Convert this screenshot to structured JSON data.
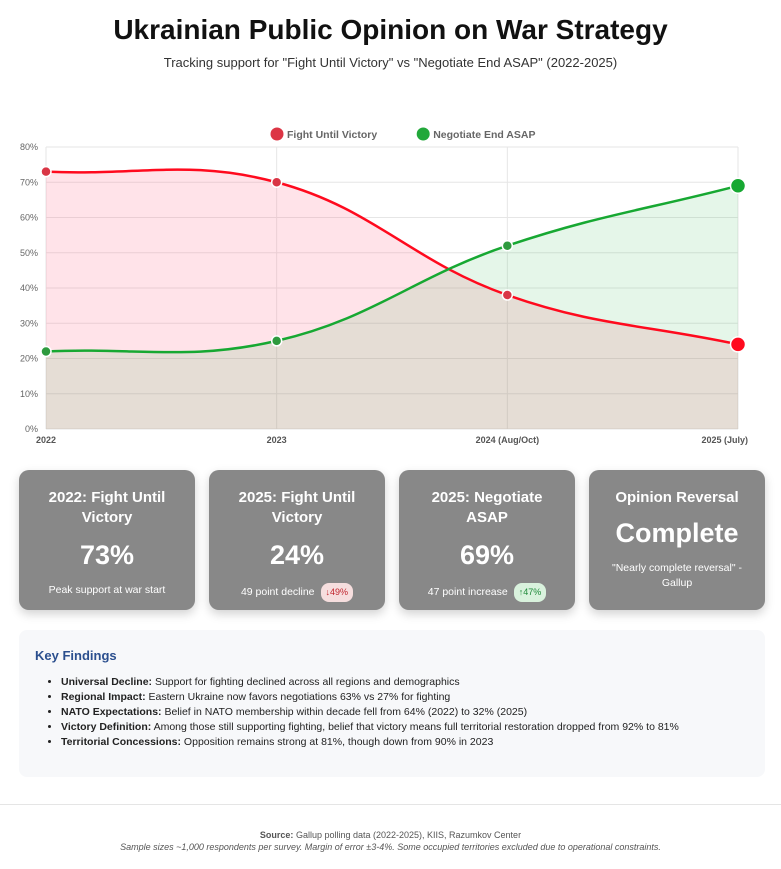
{
  "header": {
    "title": "Ukrainian Public Opinion on War Strategy",
    "subtitle": "Tracking support for \"Fight Until Victory\" vs \"Negotiate End ASAP\" (2022-2025)"
  },
  "chart_data": {
    "type": "line",
    "categories": [
      "2022",
      "2023",
      "2024 (Aug/Oct)",
      "2025 (July)"
    ],
    "series": [
      {
        "name": "Fight Until Victory",
        "values": [
          73,
          70,
          38,
          24
        ],
        "color": "#ff0a1e",
        "fill": "rgba(255,99,132,0.18)"
      },
      {
        "name": "Negotiate End ASAP",
        "values": [
          22,
          25,
          52,
          69
        ],
        "color": "#17a832",
        "fill": "rgba(40,180,70,0.12)"
      }
    ],
    "ylim": [
      0,
      80
    ],
    "yticks": [
      "0%",
      "10%",
      "20%",
      "30%",
      "40%",
      "50%",
      "60%",
      "70%",
      "80%"
    ],
    "grid": true,
    "legend": "top",
    "area_fill": true
  },
  "cards": [
    {
      "title": "2022: Fight Until Victory",
      "value": "73%",
      "desc": "Peak support at war start"
    },
    {
      "title": "2025: Fight Until Victory",
      "value": "24%",
      "desc": "49 point decline",
      "badge": "↓49%"
    },
    {
      "title": "2025: Negotiate ASAP",
      "value": "69%",
      "desc": "47 point increase",
      "badge": "↑47%"
    },
    {
      "title": "Opinion Reversal",
      "value": "Complete",
      "desc": "\"Nearly complete reversal\" - Gallup"
    }
  ],
  "findings": {
    "title": "Key Findings",
    "items": [
      {
        "label": "Universal Decline:",
        "text": " Support for fighting declined across all regions and demographics"
      },
      {
        "label": "Regional Impact:",
        "text": " Eastern Ukraine now favors negotiations 63% vs 27% for fighting"
      },
      {
        "label": "NATO Expectations:",
        "text": " Belief in NATO membership within decade fell from 64% (2022) to 32% (2025)"
      },
      {
        "label": "Victory Definition:",
        "text": " Among those still supporting fighting, belief that victory means full territorial restoration dropped from 92% to 81%"
      },
      {
        "label": "Territorial Concessions:",
        "text": " Opposition remains strong at 81%, though down from 90% in 2023"
      }
    ]
  },
  "footer": {
    "source_label": "Source:",
    "source": " Gallup polling data (2022-2025), KIIS, Razumkov Center",
    "note": "Sample sizes ~1,000 respondents per survey. Margin of error ±3-4%. Some occupied territories excluded due to operational constraints."
  }
}
